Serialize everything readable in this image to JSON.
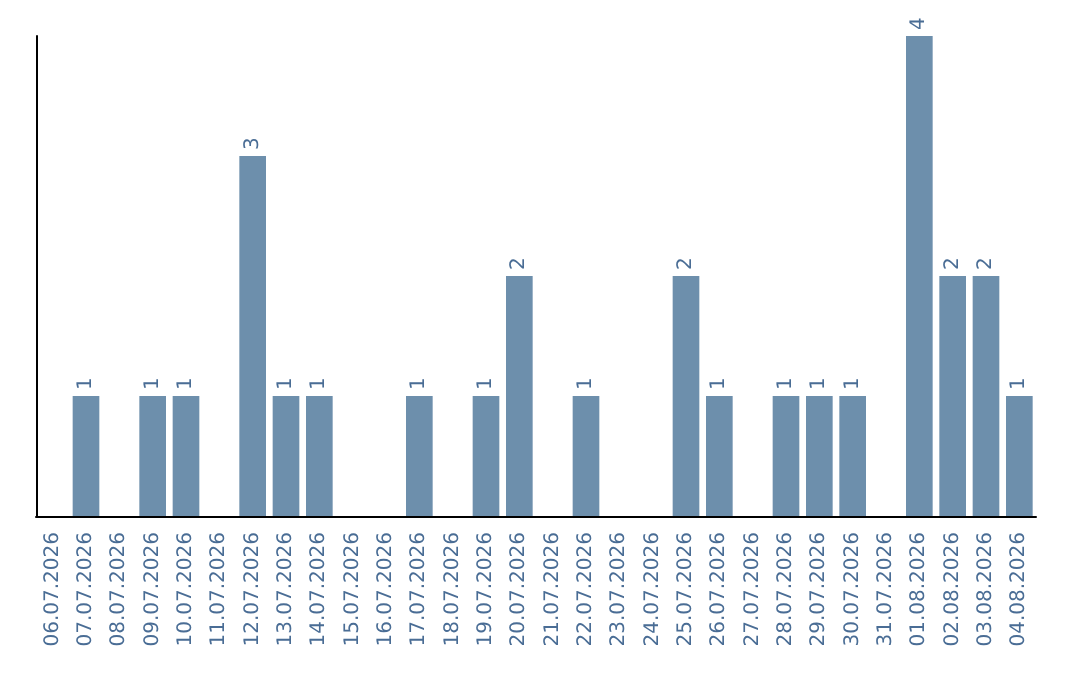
{
  "chart_data": {
    "type": "bar",
    "categories": [
      "06.07.2026",
      "07.07.2026",
      "08.07.2026",
      "09.07.2026",
      "10.07.2026",
      "11.07.2026",
      "12.07.2026",
      "13.07.2026",
      "14.07.2026",
      "15.07.2026",
      "16.07.2026",
      "17.07.2026",
      "18.07.2026",
      "19.07.2026",
      "20.07.2026",
      "21.07.2026",
      "22.07.2026",
      "23.07.2026",
      "24.07.2026",
      "25.07.2026",
      "26.07.2026",
      "27.07.2026",
      "28.07.2026",
      "29.07.2026",
      "30.07.2026",
      "31.07.2026",
      "01.08.2026",
      "02.08.2026",
      "03.08.2026",
      "04.08.2026"
    ],
    "values": [
      0,
      1,
      0,
      1,
      1,
      0,
      3,
      1,
      1,
      0,
      0,
      1,
      0,
      1,
      2,
      0,
      1,
      0,
      0,
      2,
      1,
      0,
      1,
      1,
      1,
      0,
      4,
      2,
      2,
      1
    ],
    "value_labels": [
      null,
      "1",
      null,
      "1",
      "1",
      null,
      "3",
      "1",
      "1",
      null,
      null,
      "1",
      null,
      "1",
      "2",
      null,
      "1",
      null,
      null,
      "2",
      "1",
      null,
      "1",
      "1",
      "1",
      null,
      "4",
      "2",
      "2",
      "1"
    ],
    "color": "#6d8fac",
    "tick_labels": "x",
    "grid": false
  }
}
